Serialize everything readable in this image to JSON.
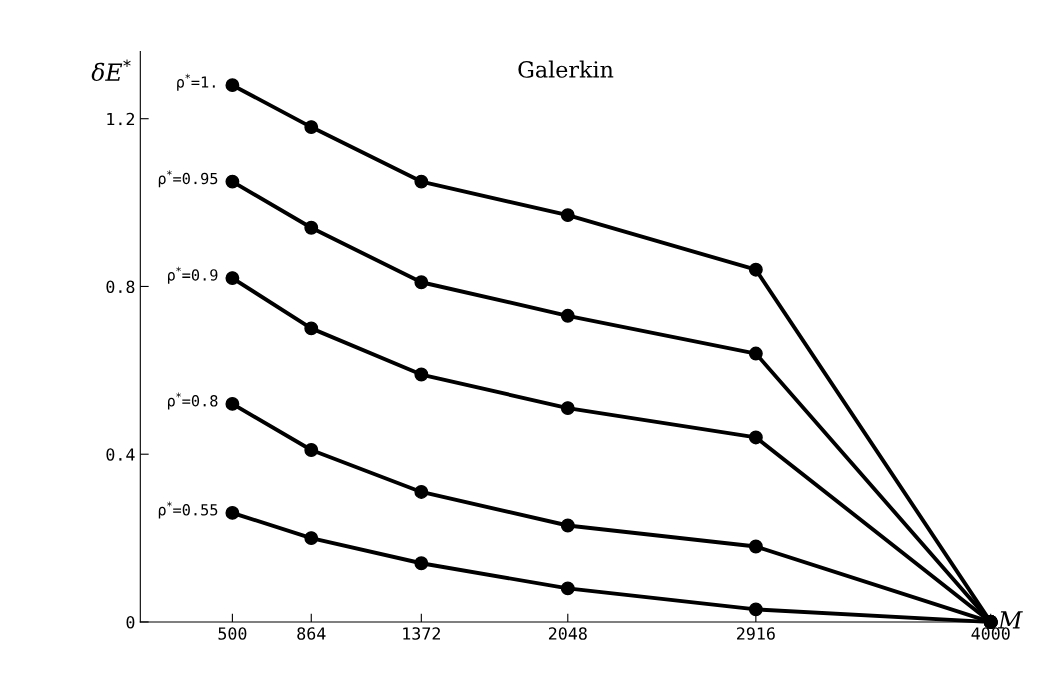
{
  "chart_data": {
    "type": "line",
    "title": "Galerkin",
    "xlabel": "M",
    "ylabel": "δE$^{*}$",
    "x": [
      500,
      864,
      1372,
      2048,
      2916,
      4000
    ],
    "series": [
      {
        "name": "ρ$^{*}$=1.",
        "color": "#000000",
        "values": [
          1.28,
          1.18,
          1.05,
          0.97,
          0.84,
          0
        ]
      },
      {
        "name": "ρ$^{*}$=0.95",
        "color": "#000000",
        "values": [
          1.05,
          0.94,
          0.81,
          0.73,
          0.64,
          0
        ]
      },
      {
        "name": "ρ$^{*}$=0.9",
        "color": "#000000",
        "values": [
          0.82,
          0.7,
          0.59,
          0.51,
          0.44,
          0
        ]
      },
      {
        "name": "ρ$^{*}$=0.8",
        "color": "#000000",
        "values": [
          0.52,
          0.41,
          0.31,
          0.23,
          0.18,
          0
        ]
      },
      {
        "name": "ρ$^{*}$=0.55",
        "color": "#000000",
        "values": [
          0.26,
          0.2,
          0.14,
          0.08,
          0.03,
          0
        ]
      }
    ],
    "xlim": [
      75,
      4000
    ],
    "ylim": [
      0,
      1.36
    ],
    "xticks": [
      500,
      864,
      1372,
      2048,
      2916,
      4000
    ],
    "yticks": [
      0,
      0.4,
      0.8,
      1.2
    ],
    "marker": "circle",
    "line_style": "solid",
    "grid": false,
    "legend": false
  }
}
